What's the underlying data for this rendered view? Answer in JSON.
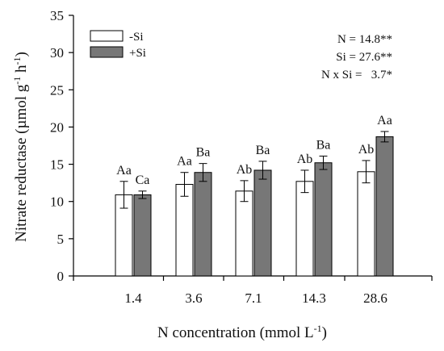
{
  "chart_data": {
    "type": "bar",
    "title": "",
    "ylabel": "Nitrate reductase (µmol g",
    "ylabel_sup1": "-1",
    "ylabel_mid": " h",
    "ylabel_sup2": "-1",
    "ylabel_end": ")",
    "xlabel": "N concentration (mmol L",
    "xlabel_sup": "-1",
    "xlabel_end": ")",
    "ylim": [
      0,
      35
    ],
    "yticks": [
      0,
      5,
      10,
      15,
      20,
      25,
      30,
      35
    ],
    "categories": [
      "1.4",
      "3.6",
      "7.1",
      "14.3",
      "28.6"
    ],
    "series": [
      {
        "name": "-Si",
        "color": "#ffffff",
        "values": [
          10.9,
          12.3,
          11.4,
          12.7,
          14.0
        ],
        "errors": [
          1.8,
          1.6,
          1.4,
          1.5,
          1.5
        ],
        "labels": [
          "Aa",
          "Aa",
          "Ab",
          "Ab",
          "Ab"
        ]
      },
      {
        "name": "+Si",
        "color": "#777777",
        "values": [
          10.9,
          13.9,
          14.2,
          15.2,
          18.7
        ],
        "errors": [
          0.5,
          1.2,
          1.2,
          0.9,
          0.7
        ],
        "labels": [
          "Ca",
          "Ba",
          "Ba",
          "Ba",
          "Aa"
        ]
      }
    ],
    "legend_position": "top-left",
    "annotations": [
      "N = 14.8**",
      "Si = 27.6**",
      "N x Si =   3.7*"
    ]
  }
}
